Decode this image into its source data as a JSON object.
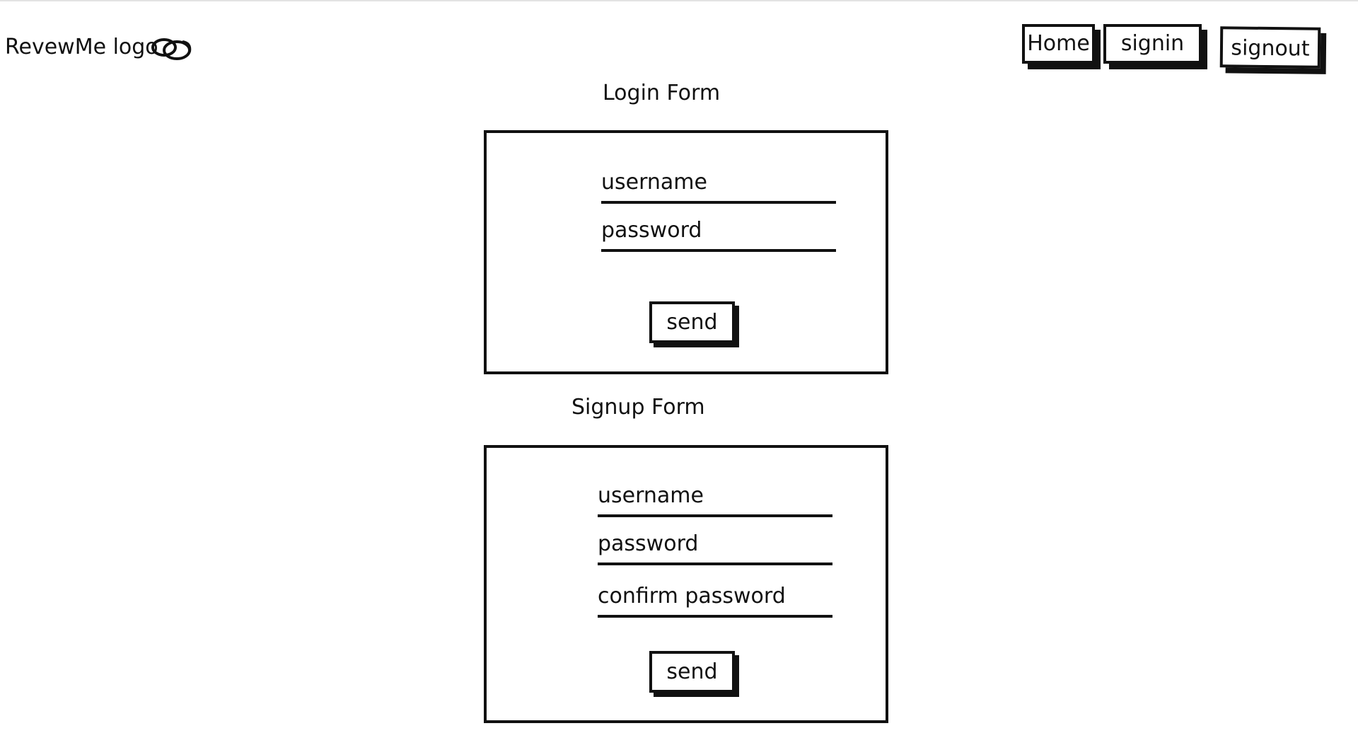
{
  "header": {
    "logo_text": "RevewMe logo",
    "logo_icon": "link-chain-icon",
    "nav": [
      {
        "label": "Home"
      },
      {
        "label": "signin"
      },
      {
        "label": "signout"
      }
    ]
  },
  "login_form": {
    "title": "Login Form",
    "fields": [
      {
        "label": "username"
      },
      {
        "label": "password"
      }
    ],
    "submit_label": "send"
  },
  "signup_form": {
    "title": "Signup Form",
    "fields": [
      {
        "label": "username"
      },
      {
        "label": "password"
      },
      {
        "label": "confirm password"
      }
    ],
    "submit_label": "send"
  }
}
